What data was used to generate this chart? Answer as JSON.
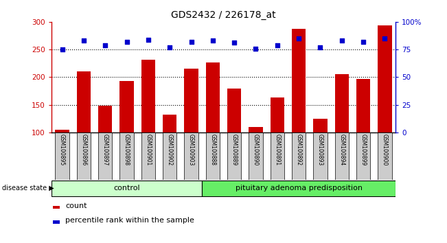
{
  "title": "GDS2432 / 226178_at",
  "samples": [
    "GSM100895",
    "GSM100896",
    "GSM100897",
    "GSM100898",
    "GSM100901",
    "GSM100902",
    "GSM100903",
    "GSM100888",
    "GSM100889",
    "GSM100890",
    "GSM100891",
    "GSM100892",
    "GSM100893",
    "GSM100894",
    "GSM100899",
    "GSM100900"
  ],
  "bar_values": [
    105,
    210,
    148,
    193,
    232,
    132,
    215,
    226,
    179,
    110,
    163,
    288,
    125,
    206,
    197,
    293
  ],
  "dot_values_pct": [
    75,
    83,
    79,
    82,
    84,
    77,
    82,
    83,
    81,
    76,
    79,
    85,
    77,
    83,
    82,
    85
  ],
  "control_count": 7,
  "adenoma_count": 9,
  "bar_color": "#cc0000",
  "dot_color": "#0000cc",
  "control_label": "control",
  "adenoma_label": "pituitary adenoma predisposition",
  "disease_state_label": "disease state",
  "ylim_left": [
    100,
    300
  ],
  "ylim_right": [
    0,
    100
  ],
  "yticks_left": [
    100,
    150,
    200,
    250,
    300
  ],
  "yticks_right": [
    0,
    25,
    50,
    75,
    100
  ],
  "ytick_right_labels": [
    "0",
    "25",
    "50",
    "75",
    "100%"
  ],
  "control_color": "#ccffcc",
  "adenoma_color": "#66ee66",
  "bar_width": 0.65,
  "legend_count_label": "count",
  "legend_pct_label": "percentile rank within the sample",
  "xlabel_color": "#cc0000",
  "dot_color_hex": "#0000cc",
  "grid_color": "black",
  "grid_linestyle": ":",
  "grid_linewidth": 0.8,
  "label_box_color": "#cccccc",
  "label_box_edge": "black",
  "figwidth": 6.51,
  "figheight": 3.54,
  "dpi": 100
}
